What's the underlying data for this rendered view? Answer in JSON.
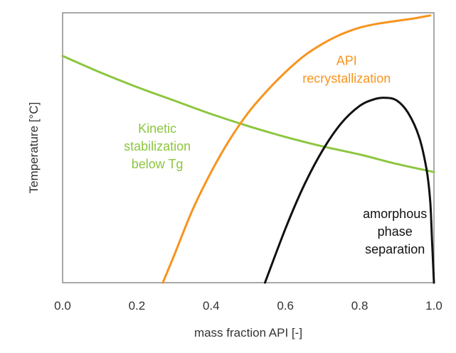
{
  "chart_data": {
    "type": "line",
    "title": "",
    "xlabel": "mass fraction API [-]",
    "ylabel": "Temperature [°C]",
    "xlim": [
      0,
      1
    ],
    "ylim": [
      0,
      100
    ],
    "x_ticks": [
      "0.0",
      "0.2",
      "0.4",
      "0.6",
      "0.8",
      "1.0"
    ],
    "x_tick_values": [
      0,
      0.2,
      0.4,
      0.6,
      0.8,
      1.0
    ],
    "y_ticks_shown": false,
    "grid": false,
    "legend": "none",
    "series": [
      {
        "color": "#8CC63F",
        "x": [
          0.0,
          0.1,
          0.2,
          0.3,
          0.4,
          0.5,
          0.6,
          0.7,
          0.8,
          0.9,
          1.0
        ],
        "y": [
          84,
          78,
          72.5,
          67.5,
          62.5,
          58,
          54,
          50.5,
          47.5,
          44,
          41
        ]
      },
      {
        "color": "#F7941D",
        "x": [
          0.27,
          0.3,
          0.35,
          0.4,
          0.45,
          0.5,
          0.55,
          0.6,
          0.65,
          0.7,
          0.75,
          0.8,
          0.85,
          0.9,
          0.95,
          0.99
        ],
        "y": [
          0,
          10,
          27,
          41,
          53,
          63,
          71,
          78,
          84,
          88.5,
          92,
          94.5,
          96,
          97,
          98,
          99
        ]
      },
      {
        "color": "#111111",
        "x": [
          0.545,
          0.6,
          0.65,
          0.7,
          0.75,
          0.8,
          0.84,
          0.87,
          0.9,
          0.93,
          0.96,
          0.98,
          0.99,
          0.995,
          1.0
        ],
        "y": [
          0,
          20,
          36,
          49,
          59,
          65.5,
          68,
          68.5,
          67.5,
          63,
          54,
          42,
          30,
          15,
          0
        ]
      }
    ],
    "annotations": [
      {
        "lines": [
          "API",
          "recrystallization"
        ],
        "color": "#F7941D",
        "x": 0.765,
        "y": 79
      },
      {
        "lines": [
          "Kinetic",
          "stabilization",
          "below Tg"
        ],
        "color": "#8CC63F",
        "x": 0.255,
        "y": 50.5
      },
      {
        "lines": [
          "amorphous",
          "phase",
          "separation"
        ],
        "color": "#111111",
        "x": 0.895,
        "y": 19
      }
    ]
  }
}
